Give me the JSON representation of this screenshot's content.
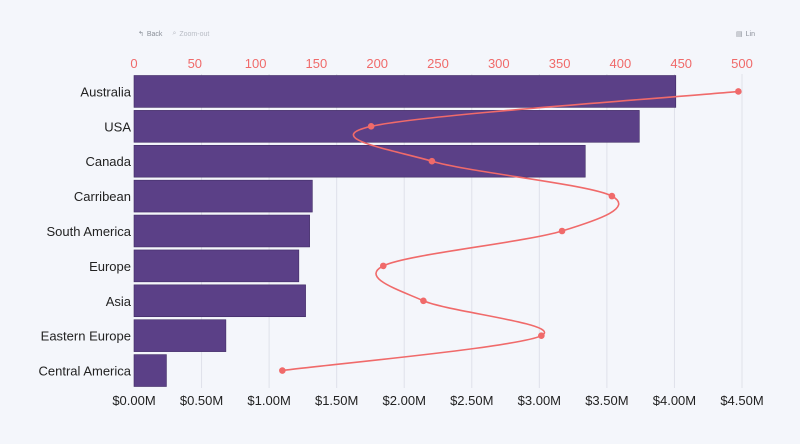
{
  "toolbar": {
    "back_label": "Back",
    "zoom_out_label": "Zoom-out",
    "scale_label": "Lin"
  },
  "colors": {
    "bar": "#5b4087",
    "line": "#f06a6a",
    "grid": "#dfe1ea",
    "bottom_axis_text": "#222222",
    "top_axis_text": "#f06a6a"
  },
  "chart_data": {
    "type": "bar",
    "orientation": "horizontal",
    "categories": [
      "Australia",
      "USA",
      "Canada",
      "Carribean",
      "South America",
      "Europe",
      "Asia",
      "Eastern Europe",
      "Central America"
    ],
    "series": [
      {
        "chart_type": "bar",
        "axis": "bottom",
        "values": [
          4.01,
          3.74,
          3.34,
          1.32,
          1.3,
          1.22,
          1.27,
          0.68,
          0.24
        ]
      },
      {
        "chart_type": "line",
        "axis": "top",
        "smooth": true,
        "values": [
          497,
          195,
          245,
          393,
          352,
          205,
          238,
          335,
          122
        ]
      }
    ],
    "x_bottom": {
      "ticks": [
        0,
        0.5,
        1.0,
        1.5,
        2.0,
        2.5,
        3.0,
        3.5,
        4.0,
        4.5
      ],
      "tick_labels": [
        "$0.00M",
        "$0.50M",
        "$1.00M",
        "$1.50M",
        "$2.00M",
        "$2.50M",
        "$3.00M",
        "$3.50M",
        "$4.00M",
        "$4.50M"
      ],
      "range": [
        0,
        4.5
      ]
    },
    "x_top": {
      "ticks": [
        0,
        50,
        100,
        150,
        200,
        250,
        300,
        350,
        400,
        450,
        500
      ],
      "tick_labels": [
        "0",
        "50",
        "100",
        "150",
        "200",
        "250",
        "300",
        "350",
        "400",
        "450",
        "500"
      ],
      "range": [
        0,
        500
      ]
    },
    "grid": true,
    "legend": "none"
  }
}
